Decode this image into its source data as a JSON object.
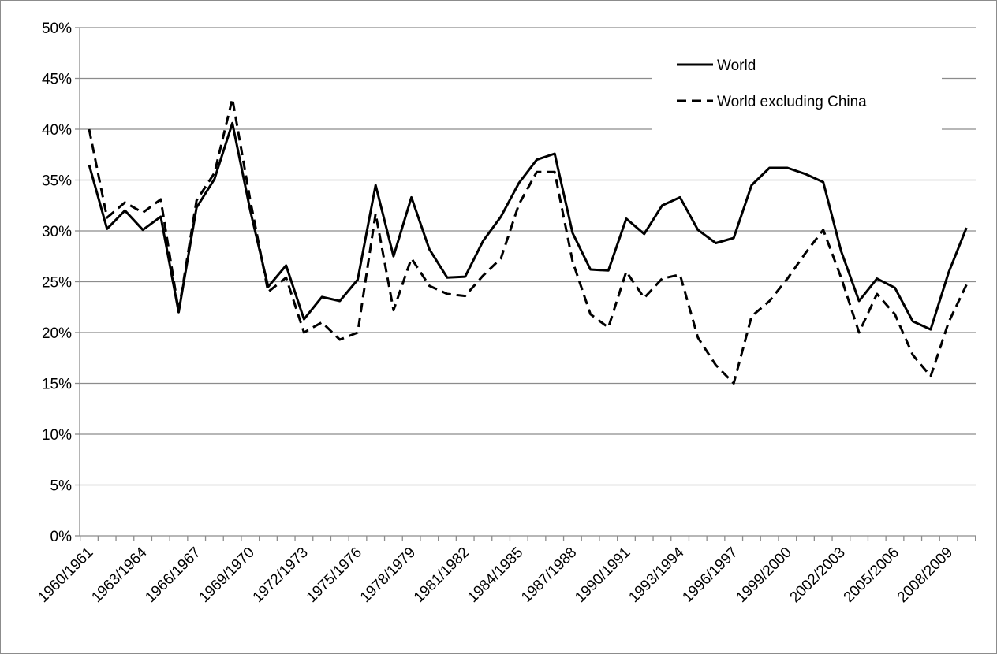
{
  "chart_data": {
    "type": "line",
    "title": "",
    "xlabel": "",
    "ylabel": "",
    "ylim": [
      0,
      50
    ],
    "y_unit": "%",
    "y_ticks": [
      "0%",
      "5%",
      "10%",
      "15%",
      "20%",
      "25%",
      "30%",
      "35%",
      "40%",
      "45%",
      "50%"
    ],
    "grid": true,
    "legend_position": "top-right",
    "x_tick_labels": [
      "1960/1961",
      "1963/1964",
      "1966/1967",
      "1969/1970",
      "1972/1973",
      "1975/1976",
      "1978/1979",
      "1981/1982",
      "1984/1985",
      "1987/1988",
      "1990/1991",
      "1993/1994",
      "1996/1997",
      "1999/2000",
      "2002/2003",
      "2005/2006",
      "2008/2009"
    ],
    "x": [
      "1960/1961",
      "1961/1962",
      "1962/1963",
      "1963/1964",
      "1964/1965",
      "1965/1966",
      "1966/1967",
      "1967/1968",
      "1968/1969",
      "1969/1970",
      "1970/1971",
      "1971/1972",
      "1972/1973",
      "1973/1974",
      "1974/1975",
      "1975/1976",
      "1976/1977",
      "1977/1978",
      "1978/1979",
      "1979/1980",
      "1980/1981",
      "1981/1982",
      "1982/1983",
      "1983/1984",
      "1984/1985",
      "1985/1986",
      "1986/1987",
      "1987/1988",
      "1988/1989",
      "1989/1990",
      "1990/1991",
      "1991/1992",
      "1992/1993",
      "1993/1994",
      "1994/1995",
      "1995/1996",
      "1996/1997",
      "1997/1998",
      "1998/1999",
      "1999/2000",
      "2000/2001",
      "2001/2002",
      "2002/2003",
      "2003/2004",
      "2004/2005",
      "2005/2006",
      "2006/2007",
      "2007/2008",
      "2008/2009",
      "2009/2010"
    ],
    "series": [
      {
        "name": "World",
        "style": "solid",
        "color": "#000000",
        "values": [
          36.5,
          30.2,
          32.0,
          30.1,
          31.4,
          22.0,
          32.3,
          35.1,
          40.6,
          32.0,
          24.5,
          26.6,
          21.3,
          23.5,
          23.1,
          25.2,
          34.5,
          27.5,
          33.3,
          28.2,
          25.4,
          25.5,
          29.0,
          31.4,
          34.7,
          37.0,
          37.6,
          29.8,
          26.2,
          26.1,
          31.2,
          29.7,
          32.5,
          33.3,
          30.1,
          28.8,
          29.3,
          34.5,
          36.2,
          36.2,
          35.6,
          34.8,
          28.0,
          23.1,
          25.3,
          24.4,
          21.1,
          20.3,
          25.9,
          30.3
        ]
      },
      {
        "name": "World excluding China",
        "style": "dashed",
        "color": "#000000",
        "values": [
          40.0,
          31.3,
          32.8,
          31.8,
          33.1,
          22.1,
          33.0,
          35.7,
          43.0,
          33.0,
          24.0,
          25.4,
          20.0,
          21.0,
          19.3,
          20.0,
          31.7,
          22.2,
          27.3,
          24.6,
          23.8,
          23.6,
          25.6,
          27.3,
          32.6,
          35.8,
          35.8,
          27.0,
          21.8,
          20.5,
          26.0,
          23.4,
          25.3,
          25.7,
          19.5,
          16.8,
          15.0,
          21.6,
          23.1,
          25.3,
          27.8,
          30.1,
          25.4,
          20.0,
          23.8,
          21.8,
          17.8,
          15.7,
          21.0,
          24.7
        ]
      }
    ]
  }
}
